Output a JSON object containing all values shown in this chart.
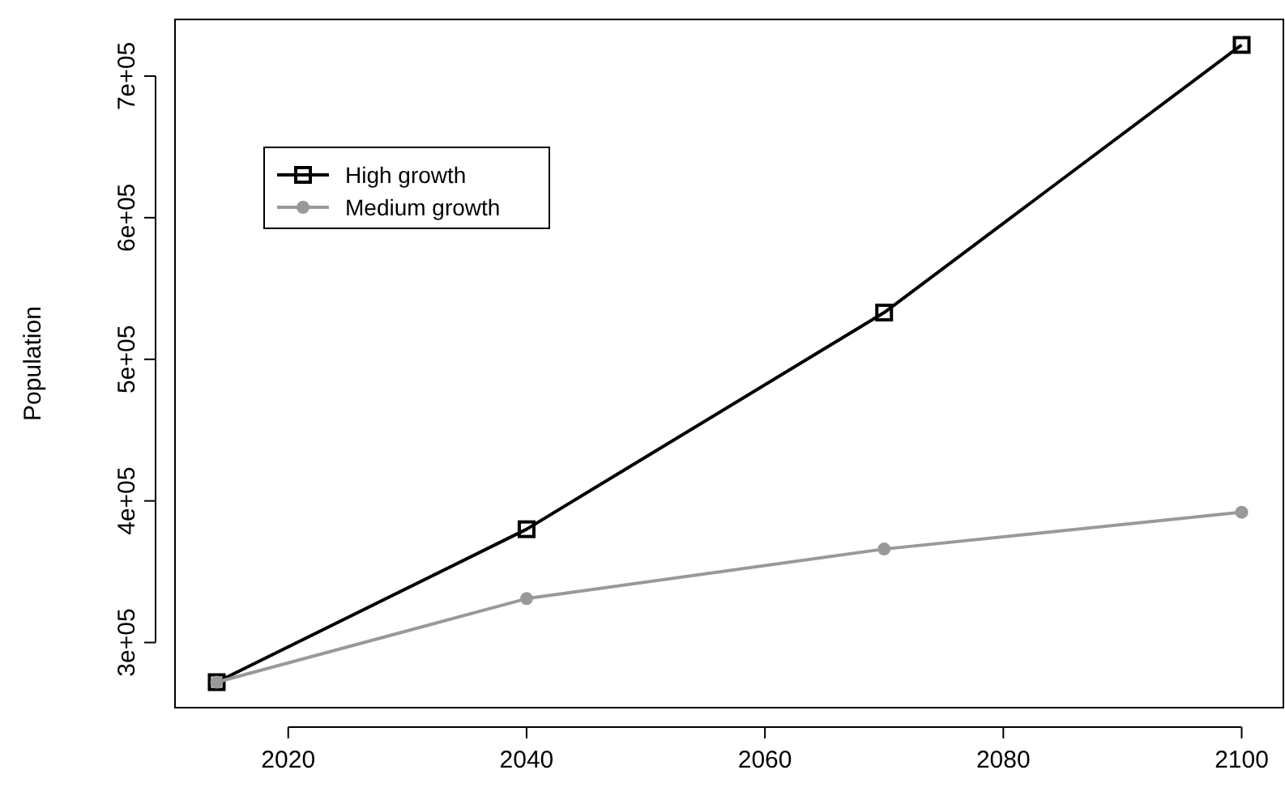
{
  "chart_data": {
    "type": "line",
    "ylabel": "Population",
    "x": [
      2014,
      2040,
      2070,
      2100
    ],
    "series": [
      {
        "name": "High growth",
        "color": "#000000",
        "marker": "square",
        "values": [
          272000,
          380000,
          533000,
          722000
        ]
      },
      {
        "name": "Medium growth",
        "color": "#999999",
        "marker": "circle",
        "values": [
          272000,
          331000,
          366000,
          392000
        ]
      }
    ],
    "xlim": [
      2010.5,
      2103.5
    ],
    "xticks": [
      2020,
      2040,
      2060,
      2080,
      2100
    ],
    "ylim": [
      254000,
      740000
    ],
    "yticks": [
      {
        "value": 300000,
        "label": "3e+05"
      },
      {
        "value": 400000,
        "label": "4e+05"
      },
      {
        "value": 500000,
        "label": "5e+05"
      },
      {
        "value": 600000,
        "label": "6e+05"
      },
      {
        "value": 700000,
        "label": "7e+05"
      }
    ],
    "grid": false,
    "legend": "top left"
  }
}
